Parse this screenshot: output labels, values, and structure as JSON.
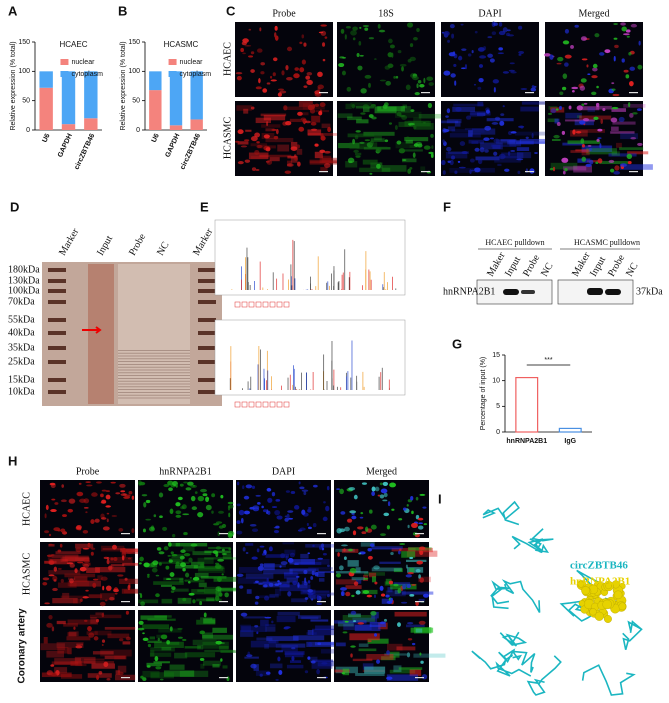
{
  "panel_letters": [
    "A",
    "B",
    "C",
    "D",
    "E",
    "F",
    "G",
    "H",
    "I"
  ],
  "chart_data": [
    {
      "type": "stacked_bar",
      "title": "HCAEC",
      "ylabel": "Relative expression (% total)",
      "categories": [
        "U6",
        "GAPDH",
        "circZBTB46"
      ],
      "series": [
        {
          "name": "nuclear",
          "color": "#f4837d",
          "values": [
            72,
            10,
            20
          ]
        },
        {
          "name": "cytoplasm",
          "color": "#4da6f5",
          "values": [
            28,
            90,
            80
          ]
        }
      ],
      "ylim": [
        0,
        150
      ],
      "yticks": [
        0,
        50,
        100,
        150
      ]
    },
    {
      "type": "stacked_bar",
      "title": "HCASMC",
      "ylabel": "Relative expression (% total)",
      "categories": [
        "U6",
        "GAPDH",
        "circZBTB46"
      ],
      "series": [
        {
          "name": "nuclear",
          "color": "#f4837d",
          "values": [
            68,
            8,
            18
          ]
        },
        {
          "name": "cytoplasm",
          "color": "#4da6f5",
          "values": [
            32,
            92,
            82
          ]
        }
      ],
      "ylim": [
        0,
        150
      ],
      "yticks": [
        0,
        50,
        100,
        150
      ]
    },
    {
      "type": "bar",
      "ylabel": "Percentage of input (%)",
      "categories": [
        "hnRNPA2B1",
        "IgG"
      ],
      "values": [
        10.6,
        0.7
      ],
      "colors": [
        "#f06060",
        "#4a90e2"
      ],
      "annotation": "***",
      "ylim": [
        0,
        15
      ],
      "yticks": [
        0,
        5,
        10,
        15
      ]
    }
  ],
  "panel_c": {
    "columns": [
      "Probe",
      "18S",
      "DAPI",
      "Merged"
    ],
    "rows": [
      "HCAEC",
      "HCASMC"
    ]
  },
  "panel_d": {
    "lanes": [
      "Marker",
      "Input",
      "Probe",
      "NC",
      "Marker"
    ],
    "markers": [
      "180kDa",
      "130kDa",
      "100kDa",
      "70kDa",
      "55kDa",
      "40kDa",
      "35kDa",
      "25kDa",
      "15kDa",
      "10kDa"
    ]
  },
  "panel_f": {
    "groups": [
      "HCAEC pulldown",
      "HCASMC pulldown"
    ],
    "lanes": [
      "Maker",
      "Input",
      "Probe",
      "NC",
      "Maker",
      "Input",
      "Probe",
      "NC"
    ],
    "protein": "hnRNPA2B1",
    "size": "37kDa"
  },
  "panel_h": {
    "columns": [
      "Probe",
      "hnRNPA2B1",
      "DAPI",
      "Merged"
    ],
    "rows": [
      "HCAEC",
      "HCASMC",
      "Coronary artery"
    ]
  },
  "panel_i": {
    "legend": [
      {
        "label": "circZBTB46",
        "color": "#1bb6c1"
      },
      {
        "label": "hnRNPA2B1",
        "color": "#e6d200"
      }
    ]
  }
}
